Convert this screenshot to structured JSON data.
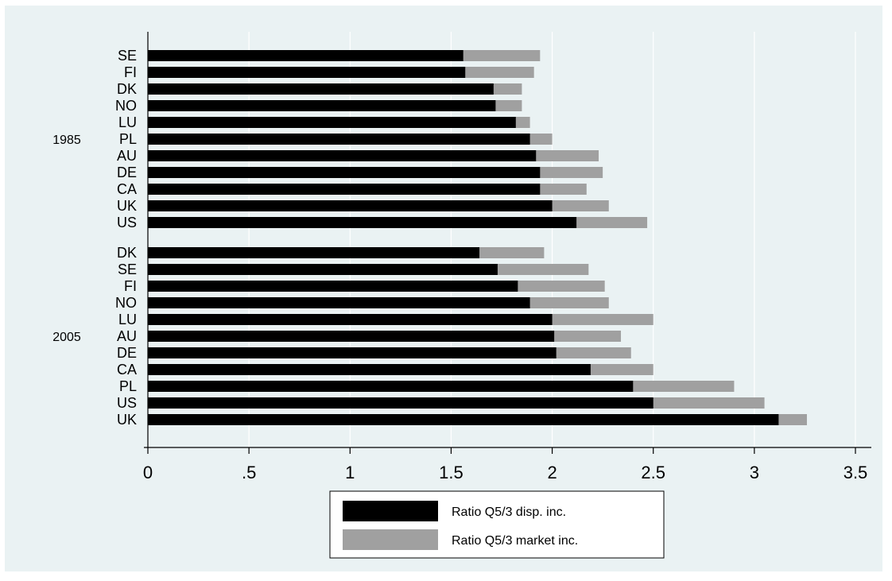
{
  "chart_data": {
    "type": "bar",
    "orientation": "horizontal",
    "stacked": true,
    "xlim": [
      0,
      3.5
    ],
    "x_ticks": [
      0,
      0.5,
      1,
      1.5,
      2,
      2.5,
      3,
      3.5
    ],
    "x_tick_labels": [
      "0",
      ".5",
      "1",
      "1.5",
      "2",
      "2.5",
      "3",
      "3.5"
    ],
    "grid": true,
    "legend_position": "bottom",
    "groups": [
      {
        "label": "1985",
        "categories": [
          "SE",
          "FI",
          "DK",
          "NO",
          "LU",
          "PL",
          "AU",
          "DE",
          "CA",
          "UK",
          "US"
        ],
        "disp": [
          1.56,
          1.57,
          1.71,
          1.72,
          1.82,
          1.89,
          1.92,
          1.94,
          1.94,
          2.0,
          2.12
        ],
        "market": [
          1.94,
          1.91,
          1.85,
          1.85,
          1.89,
          2.0,
          2.23,
          2.25,
          2.17,
          2.28,
          2.47
        ]
      },
      {
        "label": "2005",
        "categories": [
          "DK",
          "SE",
          "FI",
          "NO",
          "LU",
          "AU",
          "DE",
          "CA",
          "PL",
          "US",
          "UK"
        ],
        "disp": [
          1.64,
          1.73,
          1.83,
          1.89,
          2.0,
          2.01,
          2.02,
          2.19,
          2.4,
          2.5,
          3.12
        ],
        "market": [
          1.96,
          2.18,
          2.26,
          2.28,
          2.5,
          2.34,
          2.39,
          2.5,
          2.9,
          3.05,
          3.26
        ]
      }
    ],
    "series": [
      {
        "name": "Ratio Q5/3 disp. inc.",
        "color": "#000000"
      },
      {
        "name": "Ratio Q5/3 market inc.",
        "color": "#a0a0a0"
      }
    ]
  }
}
